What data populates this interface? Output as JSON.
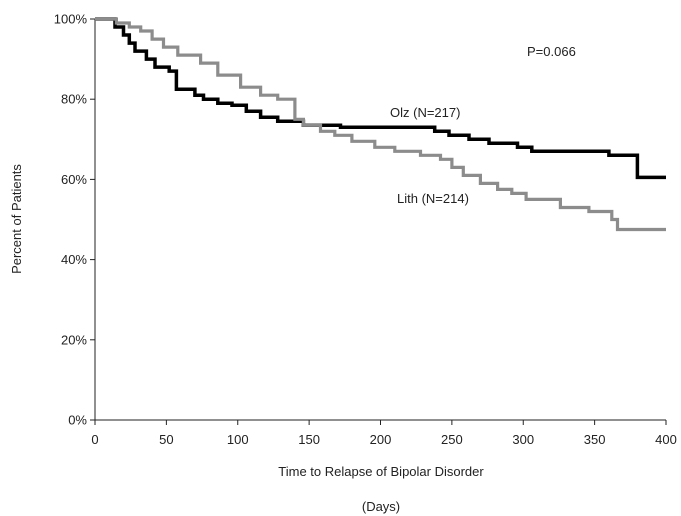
{
  "chart_data": {
    "type": "line",
    "xlabel": "Time to Relapse of Bipolar Disorder",
    "xlabel_unit": "(Days)",
    "ylabel": "Percent of Patients",
    "xlim": [
      0,
      400
    ],
    "ylim": [
      0,
      100
    ],
    "x_ticks": [
      0,
      50,
      100,
      150,
      200,
      250,
      300,
      350,
      400
    ],
    "y_ticks": [
      0,
      20,
      40,
      60,
      80,
      100
    ],
    "y_tick_labels": [
      "0%",
      "20%",
      "40%",
      "60%",
      "80%",
      "100%"
    ],
    "grid": false,
    "annotation": "P=0.066",
    "series": [
      {
        "name": "Olz (N=217)",
        "color": "#000000",
        "style": "step",
        "points": [
          [
            0,
            100
          ],
          [
            14,
            100
          ],
          [
            14,
            98
          ],
          [
            20,
            98
          ],
          [
            20,
            96
          ],
          [
            24,
            96
          ],
          [
            24,
            94
          ],
          [
            28,
            94
          ],
          [
            28,
            92
          ],
          [
            36,
            92
          ],
          [
            36,
            90
          ],
          [
            42,
            90
          ],
          [
            42,
            88
          ],
          [
            52,
            88
          ],
          [
            52,
            87
          ],
          [
            57,
            87
          ],
          [
            57,
            82.5
          ],
          [
            70,
            82.5
          ],
          [
            70,
            81
          ],
          [
            76,
            81
          ],
          [
            76,
            80
          ],
          [
            86,
            80
          ],
          [
            86,
            79
          ],
          [
            96,
            79
          ],
          [
            96,
            78.5
          ],
          [
            106,
            78.5
          ],
          [
            106,
            77
          ],
          [
            116,
            77
          ],
          [
            116,
            75.5
          ],
          [
            128,
            75.5
          ],
          [
            128,
            74.5
          ],
          [
            146,
            74.5
          ],
          [
            146,
            73.5
          ],
          [
            172,
            73.5
          ],
          [
            172,
            73
          ],
          [
            238,
            73
          ],
          [
            238,
            72
          ],
          [
            248,
            72
          ],
          [
            248,
            71
          ],
          [
            262,
            71
          ],
          [
            262,
            70
          ],
          [
            276,
            70
          ],
          [
            276,
            69
          ],
          [
            296,
            69
          ],
          [
            296,
            68
          ],
          [
            306,
            68
          ],
          [
            306,
            67
          ],
          [
            360,
            67
          ],
          [
            360,
            66
          ],
          [
            380,
            66
          ],
          [
            380,
            60.5
          ],
          [
            400,
            60.5
          ]
        ]
      },
      {
        "name": "Lith (N=214)",
        "color": "#8c8c8c",
        "style": "step",
        "points": [
          [
            0,
            100
          ],
          [
            15,
            100
          ],
          [
            15,
            99
          ],
          [
            24,
            99
          ],
          [
            24,
            98
          ],
          [
            32,
            98
          ],
          [
            32,
            97
          ],
          [
            40,
            97
          ],
          [
            40,
            95
          ],
          [
            48,
            95
          ],
          [
            48,
            93
          ],
          [
            58,
            93
          ],
          [
            58,
            91
          ],
          [
            74,
            91
          ],
          [
            74,
            89
          ],
          [
            86,
            89
          ],
          [
            86,
            86
          ],
          [
            102,
            86
          ],
          [
            102,
            83
          ],
          [
            116,
            83
          ],
          [
            116,
            81
          ],
          [
            128,
            81
          ],
          [
            128,
            80
          ],
          [
            140,
            80
          ],
          [
            140,
            75
          ],
          [
            146,
            75
          ],
          [
            146,
            73.5
          ],
          [
            158,
            73.5
          ],
          [
            158,
            72
          ],
          [
            168,
            72
          ],
          [
            168,
            71
          ],
          [
            180,
            71
          ],
          [
            180,
            69.5
          ],
          [
            196,
            69.5
          ],
          [
            196,
            68
          ],
          [
            210,
            68
          ],
          [
            210,
            67
          ],
          [
            228,
            67
          ],
          [
            228,
            66
          ],
          [
            242,
            66
          ],
          [
            242,
            65
          ],
          [
            250,
            65
          ],
          [
            250,
            63
          ],
          [
            258,
            63
          ],
          [
            258,
            61
          ],
          [
            270,
            61
          ],
          [
            270,
            59
          ],
          [
            282,
            59
          ],
          [
            282,
            57.5
          ],
          [
            292,
            57.5
          ],
          [
            292,
            56.5
          ],
          [
            302,
            56.5
          ],
          [
            302,
            55
          ],
          [
            326,
            55
          ],
          [
            326,
            53
          ],
          [
            346,
            53
          ],
          [
            346,
            52
          ],
          [
            362,
            52
          ],
          [
            362,
            50
          ],
          [
            366,
            50
          ],
          [
            366,
            47.5
          ],
          [
            400,
            47.5
          ]
        ]
      }
    ]
  }
}
